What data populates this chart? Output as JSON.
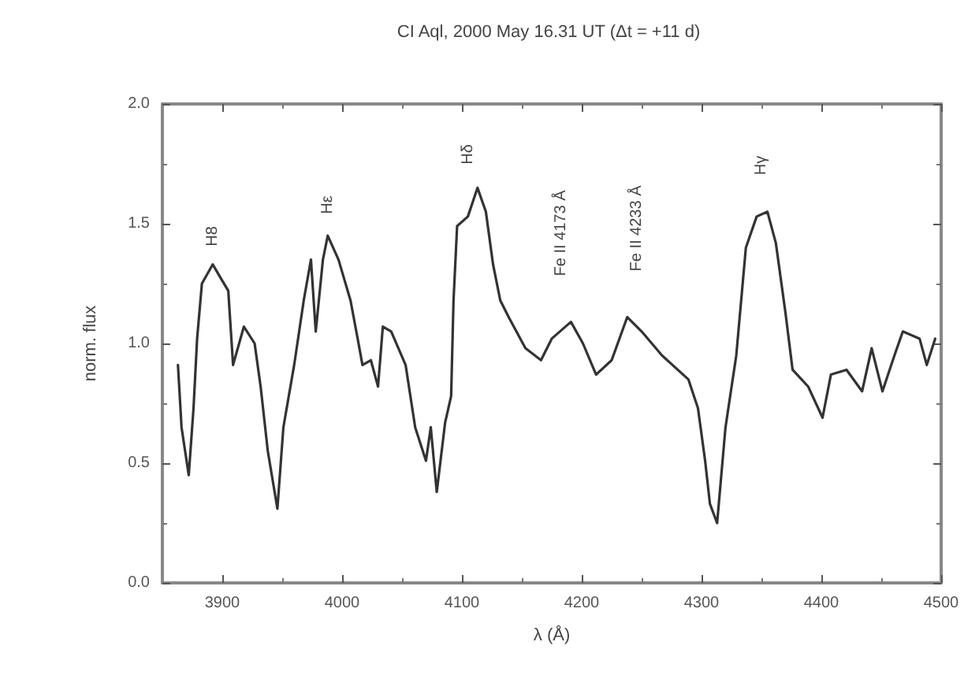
{
  "chart_data": {
    "type": "line",
    "title": "CI Aql, 2000 May 16.31 UT (Δt = +11 d)",
    "xlabel": "λ (Å)",
    "ylabel": "norm. flux",
    "xlim": [
      3850,
      4500
    ],
    "xticks": [
      3900,
      4000,
      4100,
      4200,
      4300,
      4400,
      4500
    ],
    "ylim": [
      0,
      2
    ],
    "yticks": [
      {
        "value": 0,
        "label": "0.0"
      },
      {
        "value": 0.5,
        "label": "0.5"
      },
      {
        "value": 1,
        "label": "1.0"
      },
      {
        "value": 1.5,
        "label": "1.5"
      },
      {
        "value": 2,
        "label": "2.0"
      }
    ],
    "grid": false,
    "marker": "none",
    "line_style": "solid",
    "annotations": [
      "H8",
      "Hε",
      "Hδ",
      "Fe II 4173 Å",
      "Fe II 4233 Å",
      "Hγ"
    ],
    "series": [
      {
        "color": "#333333",
        "x": [
          3863,
          3866,
          3872,
          3876,
          3879,
          3883,
          3892,
          3899,
          3905,
          3909,
          3918,
          3927,
          3932,
          3938,
          3946,
          3951,
          3960,
          3968,
          3974,
          3978,
          3984,
          3988,
          3997,
          4007,
          4013,
          4017,
          4024,
          4030,
          4034,
          4041,
          4053,
          4061,
          4070,
          4074,
          4079,
          4086,
          4091,
          4093,
          4096,
          4105,
          4113,
          4120,
          4126,
          4132,
          4139,
          4153,
          4166,
          4175,
          4191,
          4201,
          4212,
          4225,
          4238,
          4250,
          4267,
          4289,
          4297,
          4303,
          4307,
          4313,
          4320,
          4329,
          4337,
          4346,
          4355,
          4362,
          4370,
          4376,
          4389,
          4401,
          4408,
          4421,
          4434,
          4442,
          4451,
          4461,
          4468,
          4482,
          4488,
          4495
        ],
        "values": [
          0.91,
          0.65,
          0.45,
          0.73,
          1.02,
          1.25,
          1.33,
          1.27,
          1.22,
          0.91,
          1.07,
          1.0,
          0.82,
          0.55,
          0.31,
          0.65,
          0.91,
          1.18,
          1.35,
          1.05,
          1.35,
          1.45,
          1.35,
          1.18,
          1.02,
          0.91,
          0.93,
          0.82,
          1.07,
          1.05,
          0.91,
          0.65,
          0.51,
          0.65,
          0.38,
          0.67,
          0.78,
          1.18,
          1.49,
          1.53,
          1.65,
          1.55,
          1.33,
          1.18,
          1.11,
          0.98,
          0.93,
          1.02,
          1.09,
          1.0,
          0.87,
          0.93,
          1.11,
          1.05,
          0.95,
          0.85,
          0.73,
          0.51,
          0.33,
          0.25,
          0.65,
          0.95,
          1.4,
          1.53,
          1.55,
          1.42,
          1.13,
          0.89,
          0.82,
          0.69,
          0.87,
          0.89,
          0.8,
          0.98,
          0.8,
          0.95,
          1.05,
          1.02,
          0.91,
          1.02
        ]
      }
    ]
  }
}
